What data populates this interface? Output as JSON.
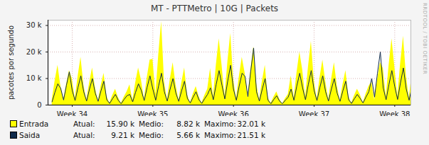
{
  "chart_data": {
    "type": "line",
    "title": "MT - PTTMetro | 10G | Packets",
    "y_label": "pacotes por segundo",
    "annotations": [
      "RRDTOOL / TOBI OETIKER"
    ],
    "legend": "bottom",
    "grid": true,
    "xlim": [
      33.7,
      38.2
    ],
    "xticks": [
      {
        "value": 34,
        "label": "Week 34"
      },
      {
        "value": 35,
        "label": "Week 35"
      },
      {
        "value": 36,
        "label": "Week 36"
      },
      {
        "value": 37,
        "label": "Week 37"
      },
      {
        "value": 38,
        "label": "Week 38"
      }
    ],
    "ylim": [
      0,
      32000
    ],
    "yticks": [
      0,
      {
        "value": 10000,
        "label": "10 k"
      },
      {
        "value": 20000,
        "label": "20 k"
      },
      {
        "value": 30000,
        "label": "30 k"
      }
    ],
    "x": [
      33.75,
      33.7857,
      33.8214,
      33.8571,
      33.8929,
      33.9286,
      33.9643,
      34,
      34.0357,
      34.0714,
      34.1071,
      34.1429,
      34.1786,
      34.2143,
      34.25,
      34.2857,
      34.3214,
      34.3571,
      34.3929,
      34.4286,
      34.4643,
      34.5,
      34.5357,
      34.5714,
      34.6071,
      34.6429,
      34.6786,
      34.7143,
      34.75,
      34.7857,
      34.8214,
      34.8571,
      34.8929,
      34.9286,
      34.9643,
      35,
      35.0357,
      35.0714,
      35.1071,
      35.1429,
      35.1786,
      35.2143,
      35.25,
      35.2857,
      35.3214,
      35.3571,
      35.3929,
      35.4286,
      35.4643,
      35.5,
      35.5357,
      35.5714,
      35.6071,
      35.6429,
      35.6786,
      35.7143,
      35.75,
      35.7857,
      35.8214,
      35.8571,
      35.8929,
      35.9286,
      35.9643,
      36,
      36.0357,
      36.0714,
      36.1071,
      36.1429,
      36.1786,
      36.2143,
      36.25,
      36.2857,
      36.3214,
      36.3571,
      36.3929,
      36.4286,
      36.4643,
      36.5,
      36.5357,
      36.5714,
      36.6071,
      36.6429,
      36.6786,
      36.7143,
      36.75,
      36.7857,
      36.8214,
      36.8571,
      36.8929,
      36.9286,
      36.9643,
      37,
      37.0357,
      37.0714,
      37.1071,
      37.1429,
      37.1786,
      37.2143,
      37.25,
      37.2857,
      37.3214,
      37.3571,
      37.3929,
      37.4286,
      37.4643,
      37.5,
      37.5357,
      37.5714,
      37.6071,
      37.6429,
      37.6786,
      37.7143,
      37.75,
      37.7857,
      37.8214,
      37.8571,
      37.8929,
      37.9286,
      37.9643,
      38,
      38.0357,
      38.0714,
      38.1071,
      38.1429,
      38.1786,
      38.2143,
      38.25
    ],
    "series": [
      {
        "name": "Entrada",
        "type": "area",
        "color": "#ffff00",
        "stats": [
          [
            "Atual:",
            "15.90 k"
          ],
          [
            "Medio:",
            "8.82 k"
          ],
          [
            "Maximo:",
            "32.01 k"
          ]
        ],
        "values": [
          1800,
          9000,
          15000,
          7200,
          1600,
          7800,
          13000,
          9900,
          2200,
          10800,
          18000,
          7700,
          1700,
          8400,
          14000,
          6600,
          1400,
          7200,
          12000,
          3300,
          700,
          3600,
          6000,
          2800,
          600,
          3000,
          5000,
          7700,
          1700,
          8400,
          14000,
          9400,
          2000,
          10200,
          17000,
          17300,
          3800,
          18900,
          31500,
          8800,
          1900,
          9600,
          16000,
          7700,
          1700,
          8400,
          14000,
          3900,
          800,
          4200,
          7000,
          3300,
          700,
          3600,
          6000,
          13800,
          3000,
          15000,
          25000,
          14900,
          3200,
          16200,
          27000,
          9900,
          2200,
          10800,
          18000,
          12100,
          2600,
          13200,
          22000,
          8300,
          1800,
          9000,
          15000,
          2800,
          600,
          3000,
          5000,
          2200,
          500,
          2400,
          4000,
          11000,
          2400,
          12000,
          20000,
          13200,
          2900,
          14400,
          24000,
          9400,
          2000,
          10200,
          17000,
          8800,
          1900,
          9600,
          16000,
          7200,
          1600,
          7800,
          13000,
          3300,
          700,
          3600,
          6000,
          3900,
          800,
          4200,
          7000,
          8800,
          1900,
          9600,
          16000,
          13800,
          3000,
          15000,
          25000,
          14300,
          3100,
          15600,
          26000,
          11000,
          2400,
          12000,
          15900
        ]
      },
      {
        "name": "Saida",
        "type": "line",
        "color": "#0f2a4a",
        "stats": [
          [
            "Atual:",
            "9.21 k"
          ],
          [
            "Medio:",
            "5.66 k"
          ],
          [
            "Maximo:",
            "21.51 k"
          ]
        ],
        "values": [
          1200,
          4800,
          8000,
          6300,
          1900,
          7500,
          12500,
          5500,
          1700,
          6600,
          11000,
          5000,
          1500,
          6000,
          10000,
          4500,
          1400,
          5400,
          9000,
          2000,
          600,
          2400,
          4000,
          1800,
          500,
          2100,
          3500,
          4000,
          1200,
          4800,
          8000,
          5500,
          1700,
          6600,
          11000,
          6000,
          1800,
          7200,
          12000,
          5000,
          1500,
          6000,
          10000,
          4500,
          1400,
          5400,
          9000,
          2500,
          800,
          3000,
          5000,
          2000,
          600,
          2400,
          4000,
          6500,
          2000,
          7800,
          13000,
          7500,
          2300,
          9000,
          15000,
          6000,
          1800,
          7200,
          12000,
          10800,
          3200,
          12900,
          21500,
          5000,
          1500,
          6000,
          10000,
          1800,
          500,
          2100,
          3500,
          1500,
          500,
          1800,
          3000,
          6000,
          1800,
          7200,
          12000,
          6500,
          2000,
          7800,
          13000,
          5500,
          1700,
          6600,
          11000,
          5000,
          1500,
          6000,
          10000,
          4500,
          1400,
          5400,
          9000,
          2000,
          600,
          2400,
          4000,
          2500,
          800,
          3000,
          5000,
          10000,
          3000,
          12000,
          20000,
          6500,
          2000,
          7800,
          13000,
          7000,
          2100,
          8400,
          14000,
          6000,
          1800,
          7000,
          9210
        ]
      }
    ]
  }
}
